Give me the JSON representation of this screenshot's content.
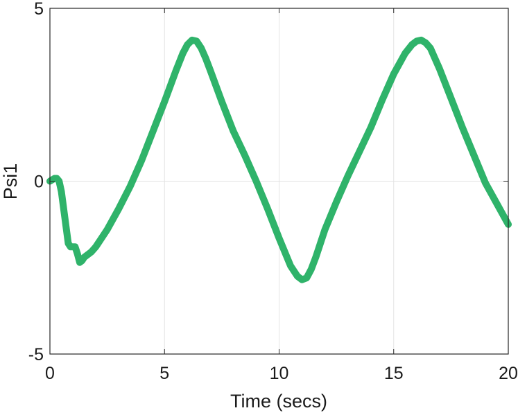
{
  "chart_data": {
    "type": "line",
    "title": "",
    "xlabel": "Time (secs)",
    "ylabel": "Psi1",
    "xlim": [
      0,
      20
    ],
    "ylim": [
      -5,
      5
    ],
    "xticks": [
      0,
      5,
      10,
      15,
      20
    ],
    "yticks": [
      -5,
      0,
      5
    ],
    "xtick_labels": [
      "0",
      "5",
      "10",
      "15",
      "20"
    ],
    "ytick_labels": [
      "-5",
      "0",
      "5"
    ],
    "grid": true,
    "series": [
      {
        "color": "#2fb36a",
        "x": [
          0,
          0.1,
          0.2,
          0.3,
          0.4,
          0.5,
          0.6,
          0.7,
          0.8,
          0.9,
          1.0,
          1.1,
          1.2,
          1.3,
          1.4,
          1.5,
          1.6,
          1.8,
          2.0,
          2.2,
          2.5,
          3.0,
          3.5,
          4.0,
          4.5,
          5.0,
          5.5,
          5.8,
          6.0,
          6.2,
          6.4,
          6.6,
          6.8,
          7.0,
          7.5,
          8.0,
          8.5,
          9.0,
          9.5,
          10.0,
          10.5,
          10.8,
          11.0,
          11.2,
          11.4,
          11.6,
          11.8,
          12.0,
          12.5,
          13.0,
          13.5,
          14.0,
          14.5,
          15.0,
          15.5,
          15.8,
          16.0,
          16.2,
          16.4,
          16.6,
          16.8,
          17.0,
          17.5,
          18.0,
          18.5,
          19.0,
          19.5,
          20.0
        ],
        "y": [
          0.0,
          0.04,
          0.08,
          0.08,
          0.0,
          -0.3,
          -0.8,
          -1.3,
          -1.8,
          -1.9,
          -1.9,
          -1.9,
          -2.1,
          -2.35,
          -2.3,
          -2.2,
          -2.15,
          -2.05,
          -1.9,
          -1.7,
          -1.4,
          -0.8,
          -0.15,
          0.6,
          1.45,
          2.3,
          3.2,
          3.7,
          3.95,
          4.08,
          4.05,
          3.85,
          3.55,
          3.2,
          2.3,
          1.45,
          0.75,
          0.0,
          -0.8,
          -1.65,
          -2.45,
          -2.75,
          -2.85,
          -2.8,
          -2.55,
          -2.2,
          -1.8,
          -1.4,
          -0.6,
          0.15,
          0.85,
          1.55,
          2.35,
          3.1,
          3.7,
          3.95,
          4.05,
          4.08,
          4.0,
          3.85,
          3.55,
          3.25,
          2.4,
          1.55,
          0.75,
          -0.05,
          -0.65,
          -1.25
        ]
      }
    ]
  }
}
